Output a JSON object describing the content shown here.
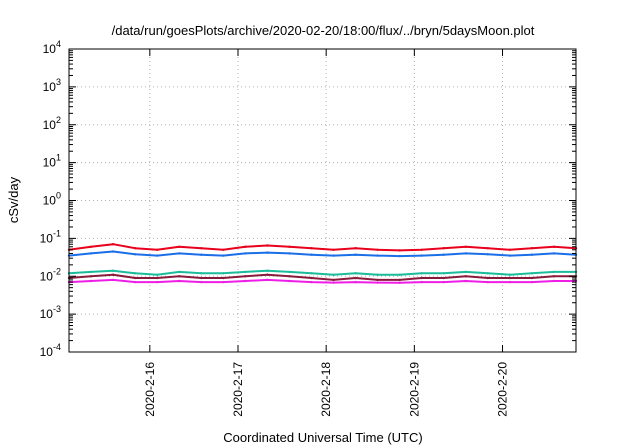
{
  "chart_data": {
    "type": "line",
    "title": "/data/run/goesPlots/archive/2020-02-20/18:00/flux/../bryn/5daysMoon.plot",
    "xlabel": "Coordinated Universal Time (UTC)",
    "ylabel": "cSv/day",
    "yscale": "log",
    "ylim": [
      0.0001,
      10000
    ],
    "xlim": [
      "2020-02-15 02:00",
      "2020-02-20 20:00"
    ],
    "y_ticks": [
      {
        "value": 0.0001,
        "mantissa": "10",
        "exp": "-4"
      },
      {
        "value": 0.001,
        "mantissa": "10",
        "exp": "-3"
      },
      {
        "value": 0.01,
        "mantissa": "10",
        "exp": "-2"
      },
      {
        "value": 0.1,
        "mantissa": "10",
        "exp": "-1"
      },
      {
        "value": 1,
        "mantissa": "10",
        "exp": "0"
      },
      {
        "value": 10,
        "mantissa": "10",
        "exp": "1"
      },
      {
        "value": 100,
        "mantissa": "10",
        "exp": "2"
      },
      {
        "value": 1000,
        "mantissa": "10",
        "exp": "3"
      },
      {
        "value": 10000,
        "mantissa": "10",
        "exp": "4"
      }
    ],
    "x_ticks": [
      {
        "label": "2020-2-16",
        "value": "2020-02-16 00:00"
      },
      {
        "label": "2020-2-17",
        "value": "2020-02-17 00:00"
      },
      {
        "label": "2020-2-18",
        "value": "2020-02-18 00:00"
      },
      {
        "label": "2020-2-19",
        "value": "2020-02-19 00:00"
      },
      {
        "label": "2020-2-20",
        "value": "2020-02-20 00:00"
      }
    ],
    "grid": true,
    "legend": "none",
    "x": [
      "2020-02-15 02:00",
      "2020-02-15 08:00",
      "2020-02-15 14:00",
      "2020-02-15 20:00",
      "2020-02-16 02:00",
      "2020-02-16 08:00",
      "2020-02-16 14:00",
      "2020-02-16 20:00",
      "2020-02-17 02:00",
      "2020-02-17 08:00",
      "2020-02-17 14:00",
      "2020-02-17 20:00",
      "2020-02-18 02:00",
      "2020-02-18 08:00",
      "2020-02-18 14:00",
      "2020-02-18 20:00",
      "2020-02-19 02:00",
      "2020-02-19 08:00",
      "2020-02-19 14:00",
      "2020-02-19 20:00",
      "2020-02-20 02:00",
      "2020-02-20 08:00",
      "2020-02-20 14:00",
      "2020-02-20 20:00"
    ],
    "series": [
      {
        "color": "#e8001c",
        "values": [
          0.05,
          0.06,
          0.07,
          0.055,
          0.05,
          0.06,
          0.055,
          0.05,
          0.06,
          0.065,
          0.06,
          0.055,
          0.05,
          0.055,
          0.05,
          0.048,
          0.05,
          0.055,
          0.06,
          0.055,
          0.05,
          0.055,
          0.06,
          0.055
        ]
      },
      {
        "color": "#1a6fe8",
        "values": [
          0.035,
          0.04,
          0.045,
          0.038,
          0.035,
          0.04,
          0.037,
          0.035,
          0.04,
          0.042,
          0.04,
          0.037,
          0.035,
          0.037,
          0.035,
          0.034,
          0.035,
          0.037,
          0.04,
          0.038,
          0.035,
          0.037,
          0.04,
          0.037
        ]
      },
      {
        "color": "#1abc9c",
        "values": [
          0.012,
          0.013,
          0.014,
          0.012,
          0.011,
          0.013,
          0.012,
          0.012,
          0.013,
          0.014,
          0.013,
          0.012,
          0.011,
          0.012,
          0.011,
          0.011,
          0.012,
          0.012,
          0.013,
          0.012,
          0.011,
          0.012,
          0.013,
          0.013
        ]
      },
      {
        "color": "#8a1a3c",
        "values": [
          0.009,
          0.01,
          0.011,
          0.009,
          0.009,
          0.01,
          0.009,
          0.009,
          0.01,
          0.011,
          0.01,
          0.009,
          0.008,
          0.009,
          0.008,
          0.008,
          0.009,
          0.009,
          0.01,
          0.009,
          0.009,
          0.009,
          0.01,
          0.01
        ]
      },
      {
        "color": "#ee1ee6",
        "values": [
          0.007,
          0.0075,
          0.008,
          0.007,
          0.007,
          0.0075,
          0.007,
          0.007,
          0.0075,
          0.008,
          0.0075,
          0.007,
          0.0068,
          0.007,
          0.0068,
          0.0067,
          0.007,
          0.007,
          0.0075,
          0.007,
          0.007,
          0.007,
          0.0075,
          0.0075
        ]
      }
    ]
  }
}
